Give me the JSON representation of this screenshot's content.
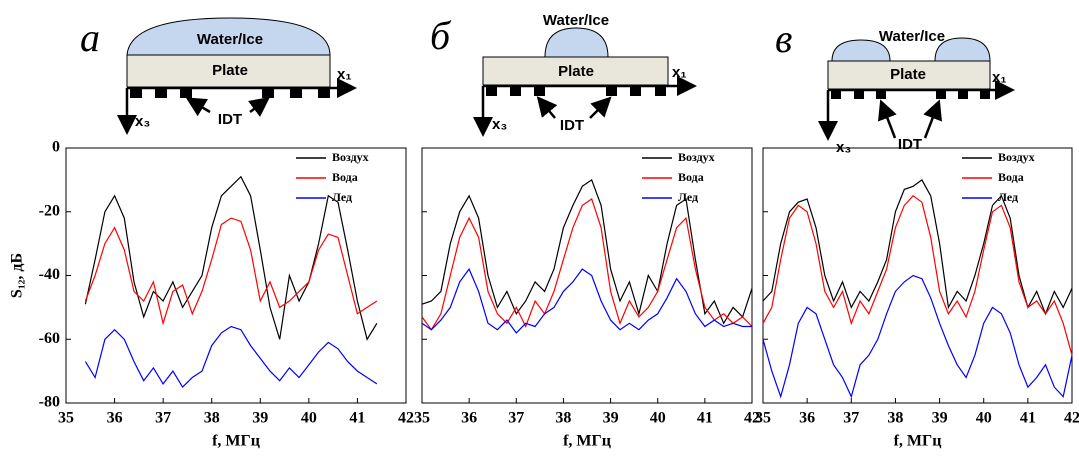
{
  "chart_data": [
    {
      "type": "line",
      "panel_label": "а",
      "x_label": "f, МГц",
      "y_label": "S₁₂, дБ",
      "annotations": [
        "Water/Ice",
        "Plate",
        "x₁",
        "x₃",
        "IDT"
      ],
      "xlim": [
        35,
        42
      ],
      "xticks": [
        35,
        36,
        37,
        38,
        39,
        40,
        41,
        42
      ],
      "ylim": [
        -80,
        0
      ],
      "yticks": [
        -80,
        -60,
        -40,
        -20,
        0
      ],
      "ytick_labels": true,
      "legend": "upper right",
      "x": [
        35.4,
        35.6,
        35.8,
        36.0,
        36.2,
        36.4,
        36.6,
        36.8,
        37.0,
        37.2,
        37.4,
        37.6,
        37.8,
        38.0,
        38.2,
        38.4,
        38.6,
        38.8,
        39.0,
        39.2,
        39.4,
        39.6,
        39.8,
        40.0,
        40.2,
        40.4,
        40.6,
        40.8,
        41.0,
        41.2,
        41.4
      ],
      "series": [
        {
          "name": "Воздух",
          "color": "#000000",
          "values": [
            -49,
            -35,
            -20,
            -15,
            -22,
            -42,
            -53,
            -45,
            -48,
            -42,
            -50,
            -45,
            -40,
            -25,
            -15,
            -12,
            -9,
            -15,
            -32,
            -50,
            -60,
            -40,
            -48,
            -42,
            -30,
            -15,
            -17,
            -32,
            -48,
            -60,
            -55
          ]
        },
        {
          "name": "Вода",
          "color": "#ff0000",
          "values": [
            -48,
            -40,
            -30,
            -25,
            -32,
            -45,
            -48,
            -42,
            -55,
            -45,
            -43,
            -52,
            -45,
            -35,
            -24,
            -22,
            -23,
            -32,
            -48,
            -42,
            -50,
            -48,
            -45,
            -42,
            -32,
            -27,
            -28,
            -40,
            -52,
            -50,
            -48
          ]
        },
        {
          "name": "Лед",
          "color": "#0000ff",
          "values": [
            -67,
            -72,
            -60,
            -57,
            -60,
            -67,
            -73,
            -69,
            -74,
            -70,
            -75,
            -72,
            -70,
            -62,
            -58,
            -56,
            -57,
            -62,
            -66,
            -70,
            -73,
            -69,
            -72,
            -68,
            -64,
            -61,
            -63,
            -67,
            -70,
            -72,
            -74
          ]
        }
      ]
    },
    {
      "type": "line",
      "panel_label": "б",
      "x_label": "f, МГц",
      "annotations": [
        "Water/Ice",
        "Plate",
        "x₁",
        "x₃",
        "IDT"
      ],
      "xlim": [
        35,
        42
      ],
      "xticks": [
        35,
        36,
        37,
        38,
        39,
        40,
        41,
        42
      ],
      "ylim": [
        -80,
        0
      ],
      "yticks": [
        -80,
        -60,
        -40,
        -20,
        0
      ],
      "ytick_labels": false,
      "legend": "upper right",
      "x": [
        35.0,
        35.2,
        35.4,
        35.6,
        35.8,
        36.0,
        36.2,
        36.4,
        36.6,
        36.8,
        37.0,
        37.2,
        37.4,
        37.6,
        37.8,
        38.0,
        38.2,
        38.4,
        38.6,
        38.8,
        39.0,
        39.2,
        39.4,
        39.6,
        39.8,
        40.0,
        40.2,
        40.4,
        40.6,
        40.8,
        41.0,
        41.2,
        41.4,
        41.6,
        41.8,
        42.0
      ],
      "series": [
        {
          "name": "Воздух",
          "color": "#000000",
          "values": [
            -49,
            -48,
            -45,
            -30,
            -20,
            -15,
            -22,
            -40,
            -50,
            -45,
            -52,
            -48,
            -42,
            -45,
            -38,
            -25,
            -18,
            -12,
            -10,
            -18,
            -38,
            -48,
            -42,
            -52,
            -40,
            -45,
            -30,
            -18,
            -16,
            -35,
            -52,
            -48,
            -55,
            -50,
            -53,
            -44
          ]
        },
        {
          "name": "Вода",
          "color": "#ff0000",
          "values": [
            -53,
            -57,
            -52,
            -40,
            -28,
            -22,
            -28,
            -45,
            -52,
            -55,
            -50,
            -56,
            -48,
            -52,
            -45,
            -35,
            -25,
            -18,
            -16,
            -25,
            -45,
            -55,
            -48,
            -53,
            -50,
            -45,
            -35,
            -25,
            -22,
            -38,
            -50,
            -54,
            -52,
            -55,
            -53,
            -56
          ]
        },
        {
          "name": "Лед",
          "color": "#0000ff",
          "values": [
            -55,
            -57,
            -54,
            -50,
            -42,
            -38,
            -45,
            -55,
            -57,
            -54,
            -58,
            -55,
            -56,
            -52,
            -50,
            -45,
            -42,
            -38,
            -40,
            -48,
            -54,
            -57,
            -55,
            -57,
            -54,
            -52,
            -47,
            -41,
            -45,
            -52,
            -56,
            -54,
            -56,
            -55,
            -56,
            -56
          ]
        }
      ]
    },
    {
      "type": "line",
      "panel_label": "в",
      "x_label": "f, МГц",
      "annotations": [
        "Water/Ice",
        "Plate",
        "x₁",
        "x₃",
        "IDT"
      ],
      "xlim": [
        35,
        42
      ],
      "xticks": [
        35,
        36,
        37,
        38,
        39,
        40,
        41,
        42
      ],
      "ylim": [
        -80,
        0
      ],
      "yticks": [
        -80,
        -60,
        -40,
        -20,
        0
      ],
      "ytick_labels": false,
      "legend": "upper right",
      "x": [
        35.0,
        35.2,
        35.4,
        35.6,
        35.8,
        36.0,
        36.2,
        36.4,
        36.6,
        36.8,
        37.0,
        37.2,
        37.4,
        37.6,
        37.8,
        38.0,
        38.2,
        38.4,
        38.6,
        38.8,
        39.0,
        39.2,
        39.4,
        39.6,
        39.8,
        40.0,
        40.2,
        40.4,
        40.6,
        40.8,
        41.0,
        41.2,
        41.4,
        41.6,
        41.8,
        42.0
      ],
      "series": [
        {
          "name": "Воздух",
          "color": "#000000",
          "values": [
            -48,
            -45,
            -30,
            -20,
            -17,
            -16,
            -25,
            -40,
            -48,
            -42,
            -50,
            -45,
            -48,
            -42,
            -35,
            -20,
            -13,
            -12,
            -10,
            -15,
            -30,
            -50,
            -45,
            -48,
            -40,
            -30,
            -18,
            -15,
            -22,
            -40,
            -50,
            -45,
            -52,
            -45,
            -50,
            -44
          ]
        },
        {
          "name": "Вода",
          "color": "#ff0000",
          "values": [
            -55,
            -50,
            -35,
            -22,
            -18,
            -20,
            -30,
            -45,
            -50,
            -45,
            -55,
            -48,
            -52,
            -45,
            -38,
            -25,
            -18,
            -15,
            -17,
            -28,
            -45,
            -52,
            -48,
            -53,
            -45,
            -32,
            -20,
            -18,
            -25,
            -42,
            -50,
            -48,
            -52,
            -48,
            -55,
            -65
          ]
        },
        {
          "name": "Лед",
          "color": "#0000ff",
          "values": [
            -60,
            -70,
            -78,
            -68,
            -55,
            -50,
            -52,
            -60,
            -68,
            -72,
            -78,
            -68,
            -65,
            -60,
            -52,
            -45,
            -42,
            -40,
            -41,
            -47,
            -55,
            -62,
            -68,
            -72,
            -65,
            -55,
            -50,
            -52,
            -58,
            -68,
            -75,
            -72,
            -68,
            -75,
            -78,
            -65
          ]
        }
      ]
    }
  ]
}
